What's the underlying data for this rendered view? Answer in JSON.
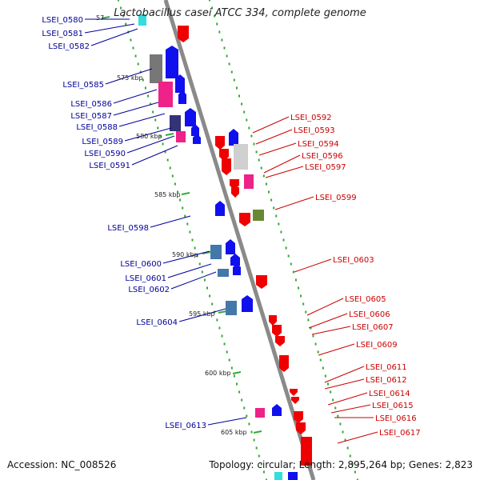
{
  "title": "Lactobacillus casei ATCC 334, complete genome",
  "footer": {
    "accession": "Accession: NC_008526",
    "stats": "Topology: circular; Length: 2,895,264 bp; Genes: 2,823"
  },
  "colors": {
    "backbone": "#888888",
    "tick_dot": "#33aa33",
    "left_label": "#000099",
    "right_label": "#cc0000",
    "blue": "#1010ee",
    "red": "#ee0000",
    "gray": "#777777",
    "light_gray": "#cfcfcf",
    "magenta": "#ee2288",
    "navy": "#333377",
    "steel": "#4477aa",
    "olive": "#668833",
    "cyan": "#33dddd"
  },
  "ticks": [
    {
      "label": "57"
    },
    {
      "label": "575 kbp"
    },
    {
      "label": "580 kbp"
    },
    {
      "label": "585 kbp"
    },
    {
      "label": "590 kbp"
    },
    {
      "label": "595 kbp"
    },
    {
      "label": "600 kbp"
    },
    {
      "label": "605 kbp"
    }
  ],
  "left_genes": [
    {
      "label": "LSEI_0580"
    },
    {
      "label": "LSEI_0581"
    },
    {
      "label": "LSEI_0582"
    },
    {
      "label": "LSEI_0585"
    },
    {
      "label": "LSEI_0586"
    },
    {
      "label": "LSEI_0587"
    },
    {
      "label": "LSEI_0588"
    },
    {
      "label": "LSEI_0589"
    },
    {
      "label": "LSEI_0590"
    },
    {
      "label": "LSEI_0591"
    },
    {
      "label": "LSEI_0598"
    },
    {
      "label": "LSEI_0600"
    },
    {
      "label": "LSEI_0601"
    },
    {
      "label": "LSEI_0602"
    },
    {
      "label": "LSEI_0604"
    },
    {
      "label": "LSEI_0613"
    }
  ],
  "right_genes": [
    {
      "label": "LSEI_0592"
    },
    {
      "label": "LSEI_0593"
    },
    {
      "label": "LSEI_0594"
    },
    {
      "label": "LSEI_0596"
    },
    {
      "label": "LSEI_0597"
    },
    {
      "label": "LSEI_0599"
    },
    {
      "label": "LSEI_0603"
    },
    {
      "label": "LSEI_0605"
    },
    {
      "label": "LSEI_0606"
    },
    {
      "label": "LSEI_0607"
    },
    {
      "label": "LSEI_0609"
    },
    {
      "label": "LSEI_0611"
    },
    {
      "label": "LSEI_0612"
    },
    {
      "label": "LSEI_0614"
    },
    {
      "label": "LSEI_0615"
    },
    {
      "label": "LSEI_0616"
    },
    {
      "label": "LSEI_0617"
    }
  ]
}
